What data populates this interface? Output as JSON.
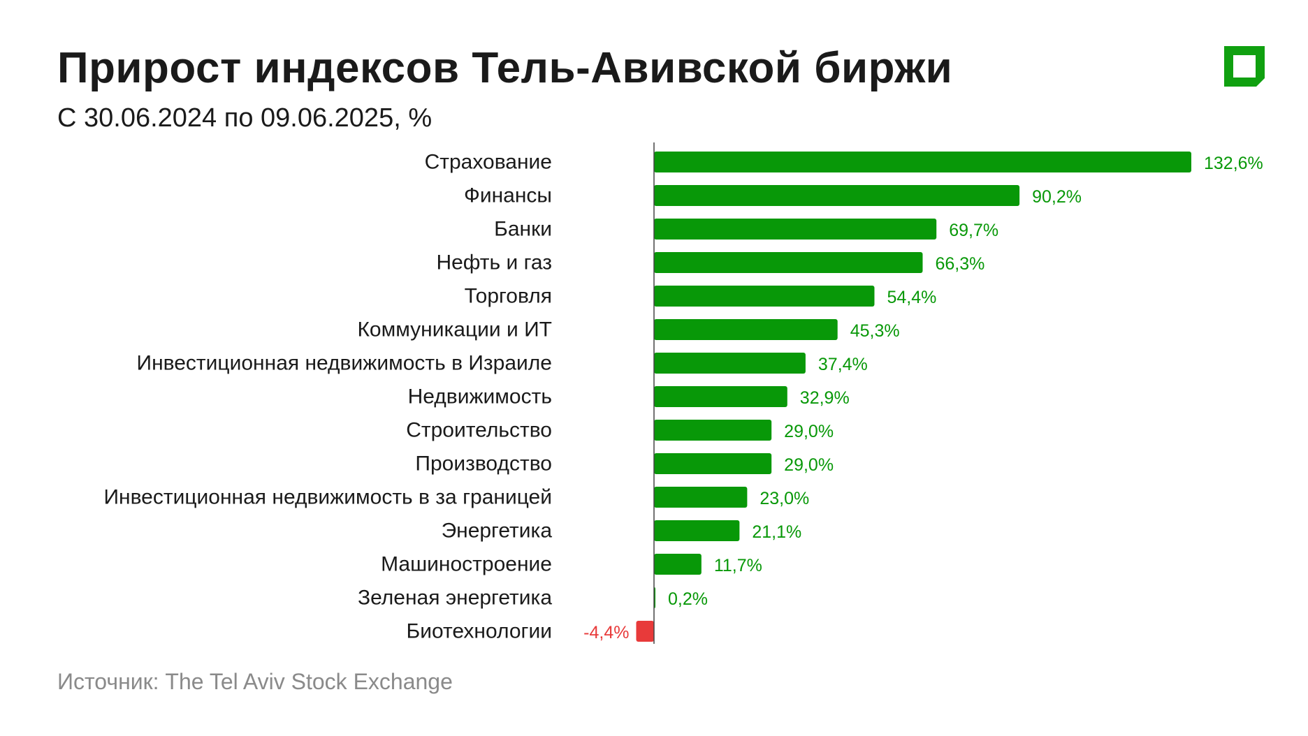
{
  "header": {
    "title": "Прирост индексов Тель-Авивской биржи",
    "subtitle": "С 30.06.2024 по 09.06.2025, %"
  },
  "footer": {
    "source": "Источник: The Tel Aviv Stock Exchange"
  },
  "colors": {
    "positive": "#089808",
    "negative": "#e83a3a",
    "logo": "#10a010",
    "axis": "#444444",
    "label": "#1a1a1a"
  },
  "chart_data": {
    "type": "bar",
    "orientation": "horizontal",
    "title": "Прирост индексов Тель-Авивской биржи",
    "subtitle": "С 30.06.2024 по 09.06.2025, %",
    "xlabel": "",
    "ylabel": "",
    "grid": false,
    "legend": "none",
    "categories": [
      "Страхование",
      "Финансы",
      "Банки",
      "Нефть и газ",
      "Торговля",
      "Коммуникации и ИТ",
      "Инвестиционная недвижимость в Израиле",
      "Недвижимость",
      "Строительство",
      "Производство",
      "Инвестиционная недвижимость в за границей",
      "Энергетика",
      "Машиностроение",
      "Зеленая энергетика",
      "Биотехнологии"
    ],
    "values": [
      132.6,
      90.2,
      69.7,
      66.3,
      54.4,
      45.3,
      37.4,
      32.9,
      29.0,
      29.0,
      23.0,
      21.1,
      11.7,
      0.2,
      -4.4
    ],
    "value_labels": [
      "132,6%",
      "90,2%",
      "69,7%",
      "66,3%",
      "54,4%",
      "45,3%",
      "37,4%",
      "32,9%",
      "29,0%",
      "29,0%",
      "23,0%",
      "21,1%",
      "11,7%",
      "0,2%",
      "-4,4%"
    ],
    "xlim": [
      -4.4,
      132.6
    ]
  }
}
